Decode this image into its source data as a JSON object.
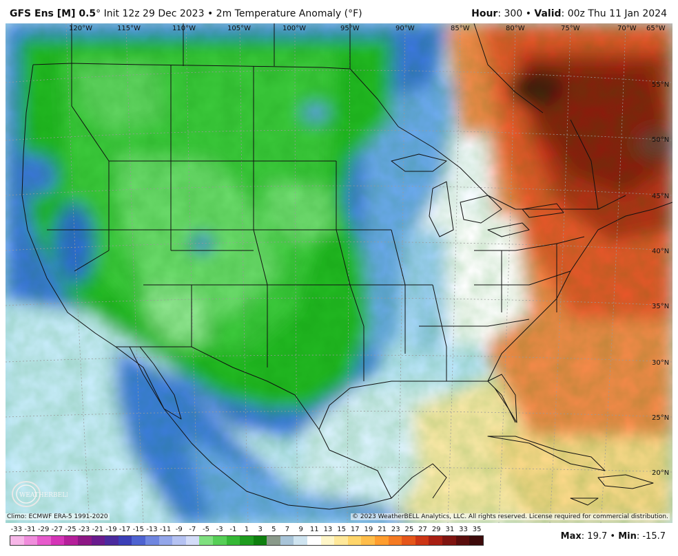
{
  "header": {
    "model": "GFS Ens [M] 0.5",
    "degree": "°",
    "init": "Init 12z 29 Dec 2023",
    "bullet": "•",
    "field": "2m Temperature Anomaly (°F)",
    "hour_label": "Hour",
    "hour_value": ": 300",
    "valid_label": "Valid",
    "valid_value": ": 00z Thu 11 Jan 2024"
  },
  "map": {
    "longitudes": [
      "120°W",
      "115°W",
      "110°W",
      "105°W",
      "100°W",
      "95°W",
      "90°W",
      "85°W",
      "80°W",
      "75°W",
      "70°W",
      "65°W"
    ],
    "latitudes": [
      "55°N",
      "50°N",
      "45°N",
      "40°N",
      "35°N",
      "30°N",
      "25°N",
      "20°N"
    ],
    "climo": "Climo: ECMWF ERA-5 1991-2020",
    "copyright": "© 2023 WeatherBELL Analytics, LLC. All rights reserved. License required for commercial distribution.",
    "logo_text": "WEATHERBELL"
  },
  "legend": {
    "ticks": [
      "-33",
      "-31",
      "-29",
      "-27",
      "-25",
      "-23",
      "-21",
      "-19",
      "-17",
      "-15",
      "-13",
      "-11",
      "-9",
      "-7",
      "-5",
      "-3",
      "-1",
      "1",
      "3",
      "5",
      "7",
      "9",
      "11",
      "13",
      "15",
      "17",
      "19",
      "21",
      "23",
      "25",
      "27",
      "29",
      "31",
      "33",
      "35"
    ],
    "colors": [
      "#f7b6e8",
      "#f08ddc",
      "#e75bcc",
      "#d534b7",
      "#b51f9a",
      "#8d1785",
      "#6a1b8e",
      "#4b2a9e",
      "#3b3fb7",
      "#4e63d1",
      "#6f86e0",
      "#93a6ea",
      "#b5c2f2",
      "#d3dcf8",
      "#7fe07f",
      "#56cf56",
      "#35b835",
      "#1e9c1e",
      "#0e7f0e",
      "#8a9a8a",
      "#a8c4d8",
      "#cfe4f0",
      "#ffffff",
      "#fff6c8",
      "#ffe899",
      "#ffd56a",
      "#ffbd4a",
      "#ff9d2e",
      "#f57a22",
      "#e5561a",
      "#cc3515",
      "#a81e12",
      "#7f1410",
      "#5a0d0c",
      "#3d0a0a"
    ]
  },
  "stats": {
    "max_label": "Max",
    "max_value": ": 19.7",
    "min_label": "Min",
    "min_value": ": -15.7",
    "sep": " • "
  },
  "colors": {
    "green_dark": "#18a818",
    "green_light": "#86e386",
    "blue_mid": "#3e78dd",
    "blue_light": "#9fd4f7",
    "red_dark": "#8b1a10",
    "orange": "#f07a32",
    "yellow": "#fde6a0"
  }
}
